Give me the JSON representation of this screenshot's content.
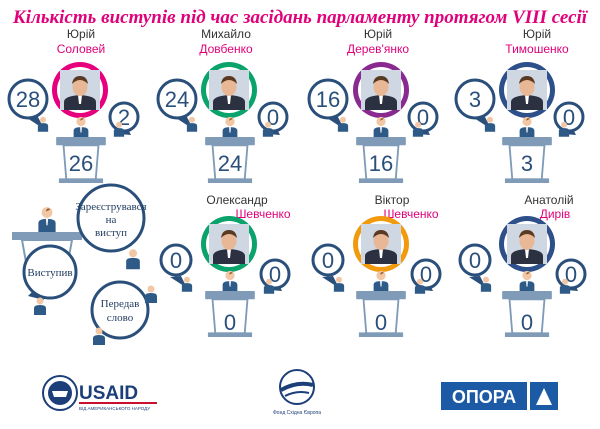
{
  "title": "Кількість виступів під час засідань парламенту протягом VIII сесії",
  "deputies": [
    {
      "first_name": "Юрій",
      "last_name": "Соловей",
      "spoke": "28",
      "transferred": "2",
      "registered": "26",
      "ring_color": "#e6007e"
    },
    {
      "first_name": "Михайло",
      "last_name": "Довбенко",
      "spoke": "24",
      "transferred": "0",
      "registered": "24",
      "ring_color": "#0aa36b"
    },
    {
      "first_name": "Юрій",
      "last_name": "Дерев'янко",
      "spoke": "16",
      "transferred": "0",
      "registered": "16",
      "ring_color": "#8a2a91"
    },
    {
      "first_name": "Юрій",
      "last_name": "Тимошенко",
      "spoke": "3",
      "transferred": "0",
      "registered": "3",
      "ring_color": "#2d4f8a"
    },
    {
      "first_name": "Олександр",
      "last_name": "Шевченко",
      "spoke": "0",
      "transferred": "0",
      "registered": "0",
      "ring_color": "#0aa36b"
    },
    {
      "first_name": "Віктор",
      "last_name": "Шевченко",
      "spoke": "0",
      "transferred": "0",
      "registered": "0",
      "ring_color": "#f29a0e"
    },
    {
      "first_name": "Анатолій",
      "last_name": "Дирів",
      "spoke": "0",
      "transferred": "0",
      "registered": "0",
      "ring_color": "#2d4f8a"
    }
  ],
  "legend": {
    "registered": [
      "Зареєструвався",
      "на",
      "виступ"
    ],
    "spoke": "Виступив",
    "transferred": [
      "Передав",
      "слово"
    ]
  },
  "logos": {
    "usaid": "USAID",
    "usaid_sub": "ВІД АМЕРИКАНСЬКОГО НАРОДУ",
    "fund": "Фонд Східна Європа",
    "opora": "ОПОРА"
  }
}
